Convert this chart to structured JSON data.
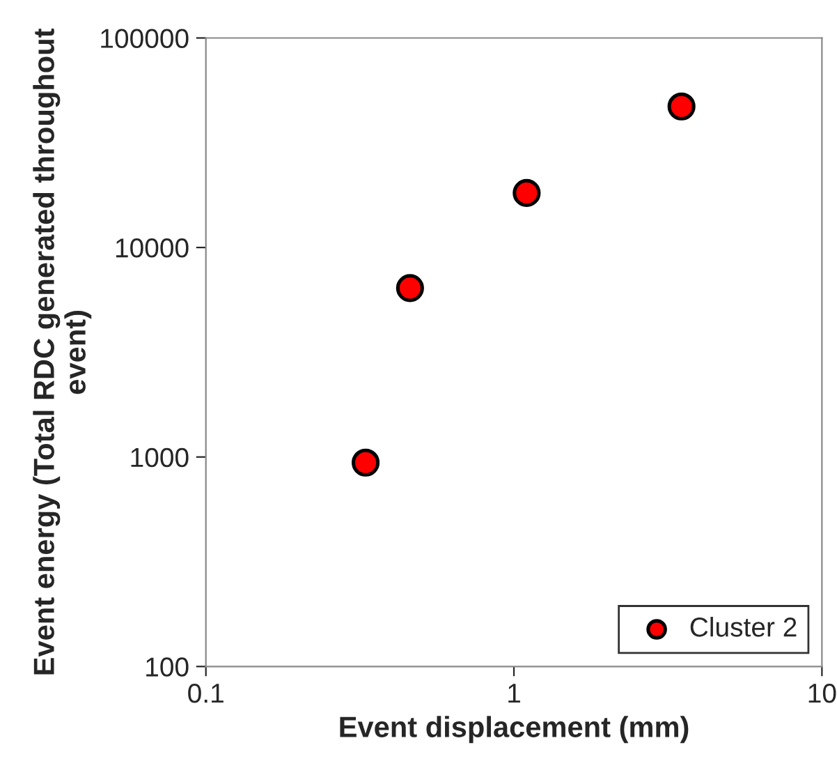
{
  "chart_data": {
    "type": "scatter",
    "xlabel": "Event displacement (mm)",
    "ylabel": "Event energy (Total RDC generated throughout event)",
    "series": [
      {
        "name": "Cluster 2",
        "color": "#ff0000",
        "x": [
          0.33,
          0.46,
          1.1,
          3.5
        ],
        "values": [
          940,
          6400,
          18200,
          47100
        ]
      }
    ],
    "log": "xy",
    "xlim": [
      0.1,
      10
    ],
    "ylim": [
      100,
      100000
    ],
    "xticks": [
      0.1,
      1,
      10
    ],
    "yticks": [
      100,
      1000,
      10000,
      100000
    ],
    "marker": "circle",
    "legend": "bottom right",
    "grid": false
  }
}
